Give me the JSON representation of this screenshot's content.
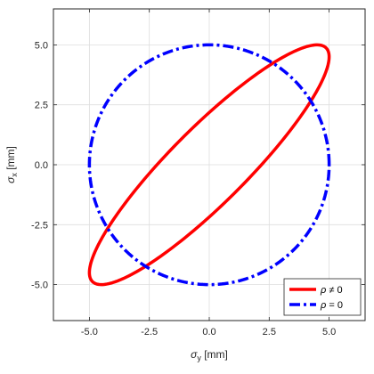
{
  "chart_data": {
    "type": "line",
    "title": "",
    "xlabel": {
      "symbol": "σ",
      "sub": "y",
      "unit": " [mm]"
    },
    "ylabel": {
      "symbol": "σ",
      "sub": "x",
      "unit": " [mm]"
    },
    "xlim": [
      -6.5,
      6.5
    ],
    "ylim": [
      -6.5,
      6.5
    ],
    "xticks": [
      -5,
      -2.5,
      0,
      2.5,
      5
    ],
    "yticks": [
      -5,
      -2.5,
      0,
      2.5,
      5
    ],
    "xtick_labels": [
      "-5.0",
      "-2.5",
      "0.0",
      "2.5",
      "5.0"
    ],
    "ytick_labels": [
      "-5.0",
      "-2.5",
      "0.0",
      "2.5",
      "5.0"
    ],
    "grid": true,
    "legend_position": "bottom-right",
    "series": [
      {
        "label_symbol": "ρ",
        "label_text": " ≠ 0",
        "color": "#ff0000",
        "style": "solid",
        "shape": "ellipse",
        "sigma_x": 5,
        "sigma_y": 5,
        "rho": 0.9
      },
      {
        "label_symbol": "ρ",
        "label_text": " = 0",
        "color": "#0000ff",
        "style": "dashdot",
        "shape": "ellipse",
        "sigma_x": 5,
        "sigma_y": 5,
        "rho": 0
      }
    ]
  }
}
